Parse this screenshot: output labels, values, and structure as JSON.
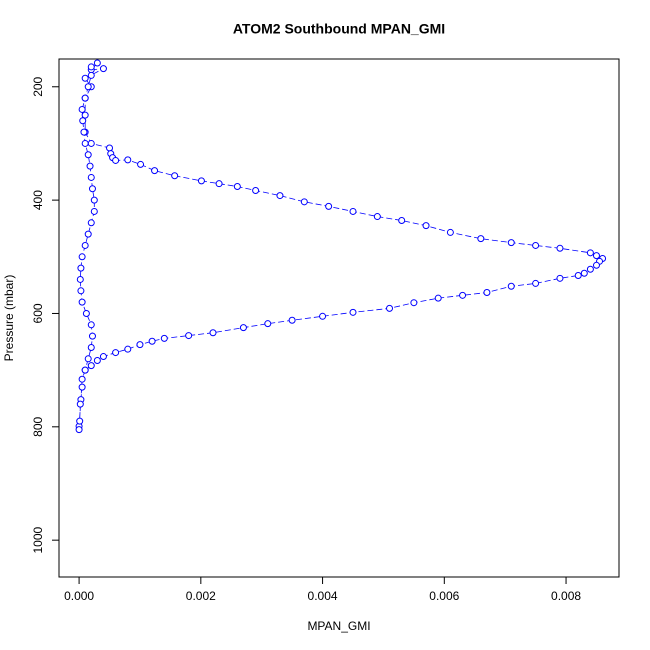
{
  "chart_data": {
    "type": "scatter",
    "title": "ATOM2 Southbound MPAN_GMI",
    "x_label": "MPAN_GMI",
    "y_label": "Pressure (mbar)",
    "color": "#0000ff",
    "invert_y": true,
    "connect": true,
    "xlim": [
      -0.00033,
      0.00887
    ],
    "ylim": [
      151,
      1065
    ],
    "xticks": [
      {
        "value": 0,
        "label": "0.000"
      },
      {
        "value": 0.002,
        "label": "0.002"
      },
      {
        "value": 0.004,
        "label": "0.004"
      },
      {
        "value": 0.006,
        "label": "0.006"
      },
      {
        "value": 0.008,
        "label": "0.008"
      }
    ],
    "yticks": [
      200,
      400,
      600,
      800,
      1000
    ],
    "x": [
      0.0003,
      0.0002,
      0.0004,
      0.0001,
      0.0002,
      0.0001,
      0.0001,
      0.0001,
      0.0002,
      0.0005,
      0.00052,
      0.00055,
      0.0006,
      0.0008,
      0.00101,
      0.00124,
      0.00157,
      0.00201,
      0.0023,
      0.0026,
      0.0029,
      0.0033,
      0.0037,
      0.0041,
      0.0045,
      0.0049,
      0.0053,
      0.0057,
      0.0061,
      0.0066,
      0.0071,
      0.0075,
      0.0079,
      0.0084,
      0.0085,
      0.0086,
      0.00855,
      0.0085,
      0.0084,
      0.0083,
      0.0082,
      0.0079,
      0.0075,
      0.0071,
      0.0067,
      0.0063,
      0.0059,
      0.0055,
      0.0051,
      0.0045,
      0.004,
      0.0035,
      0.0031,
      0.0027,
      0.0022,
      0.0018,
      0.0014,
      0.0012,
      0.001,
      0.0008,
      0.0006,
      0.0004,
      0.0003,
      0.0002,
      0.0001,
      5e-05,
      3e-05,
      0,
      0,
      1e-05,
      2e-05,
      5e-05,
      0.0001,
      0.00015,
      0.0002,
      0.00022,
      0.0002,
      0.00012,
      5e-05,
      3e-05,
      2e-05,
      3e-05,
      5e-05,
      0.0001,
      0.00015,
      0.0002,
      0.00025,
      0.00025,
      0.00022,
      0.0002,
      0.00018,
      0.00015,
      0.0001,
      8e-05,
      6e-05,
      5e-05,
      0.0001,
      0.00015,
      0.0002,
      0.0002
    ],
    "values": [
      158,
      170,
      168,
      185,
      200,
      220,
      250,
      280,
      300,
      308,
      318,
      325,
      330,
      329,
      337,
      348,
      357,
      366,
      371,
      376,
      383,
      392,
      403,
      411,
      420,
      429,
      436,
      445,
      457,
      468,
      475,
      480,
      485,
      493,
      498,
      503,
      508,
      515,
      522,
      529,
      533,
      538,
      547,
      552,
      563,
      568,
      573,
      581,
      591,
      598,
      605,
      612,
      618,
      625,
      634,
      639,
      644,
      649,
      655,
      663,
      669,
      676,
      683,
      692,
      700,
      716,
      752,
      799,
      805,
      790,
      760,
      730,
      700,
      680,
      660,
      640,
      620,
      600,
      580,
      560,
      540,
      520,
      500,
      480,
      460,
      440,
      420,
      400,
      380,
      360,
      340,
      320,
      300,
      280,
      260,
      240,
      220,
      200,
      180,
      165
    ]
  }
}
